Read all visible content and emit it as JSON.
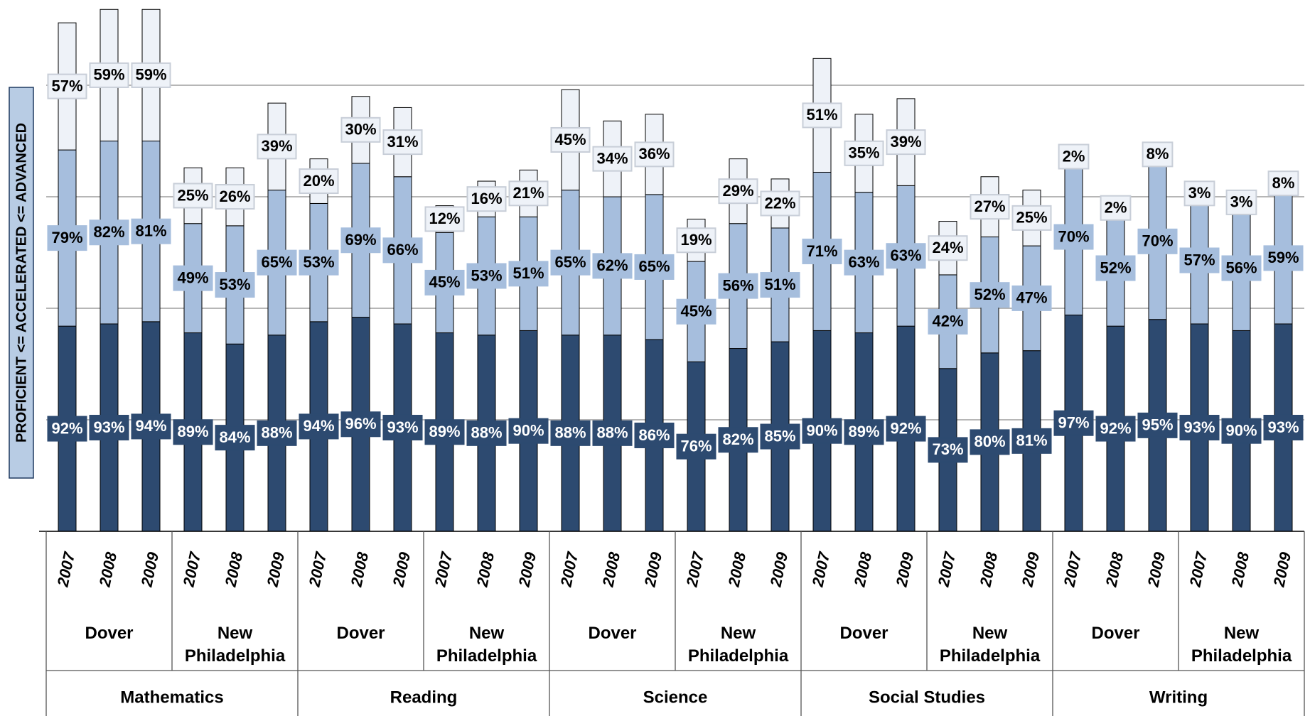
{
  "chart_data": {
    "type": "stacked-bar",
    "y_axis_label": "PROFICIENT <= ACCELERATED <= ADVANCED",
    "categories": [
      "2007",
      "2008",
      "2009",
      "2007",
      "2008",
      "2009",
      "2007",
      "2008",
      "2009",
      "2007",
      "2008",
      "2009",
      "2007",
      "2008",
      "2009",
      "2007",
      "2008",
      "2009",
      "2007",
      "2008",
      "2009",
      "2007",
      "2008",
      "2009",
      "2007",
      "2008",
      "2009",
      "2007",
      "2008",
      "2009"
    ],
    "schools": [
      "Dover",
      "New Philadelphia",
      "Dover",
      "New Philadelphia",
      "Dover",
      "New Philadelphia",
      "Dover",
      "New Philadelphia",
      "Dover",
      "New Philadelphia"
    ],
    "subjects": [
      "Mathematics",
      "Reading",
      "Science",
      "Social Studies",
      "Writing"
    ],
    "series": [
      {
        "color": "#2d4a70",
        "label_color": "#ffffff",
        "values": [
          92,
          93,
          94,
          89,
          84,
          88,
          94,
          96,
          93,
          89,
          88,
          90,
          88,
          88,
          86,
          76,
          82,
          85,
          90,
          89,
          92,
          73,
          80,
          81,
          97,
          92,
          95,
          93,
          90,
          93
        ],
        "value_labels": [
          "92%",
          "93%",
          "94%",
          "89%",
          "84%",
          "88%",
          "94%",
          "96%",
          "93%",
          "89%",
          "88%",
          "90%",
          "88%",
          "88%",
          "86%",
          "76%",
          "82%",
          "85%",
          "90%",
          "89%",
          "92%",
          "73%",
          "80%",
          "81%",
          "97%",
          "92%",
          "95%",
          "93%",
          "90%",
          "93%"
        ]
      },
      {
        "color": "#a6bedd",
        "label_color": "#000000",
        "values": [
          79,
          82,
          81,
          49,
          53,
          65,
          53,
          69,
          66,
          45,
          53,
          51,
          65,
          62,
          65,
          45,
          56,
          51,
          71,
          63,
          63,
          42,
          52,
          47,
          70,
          52,
          70,
          57,
          56,
          59
        ],
        "value_labels": [
          "79%",
          "82%",
          "81%",
          "49%",
          "53%",
          "65%",
          "53%",
          "69%",
          "66%",
          "45%",
          "53%",
          "51%",
          "65%",
          "62%",
          "65%",
          "45%",
          "56%",
          "51%",
          "71%",
          "63%",
          "63%",
          "42%",
          "52%",
          "47%",
          "70%",
          "52%",
          "70%",
          "57%",
          "56%",
          "59%"
        ]
      },
      {
        "color": "#eef2f8",
        "label_color": "#000000",
        "values": [
          57,
          59,
          59,
          25,
          26,
          39,
          20,
          30,
          31,
          12,
          16,
          21,
          45,
          34,
          36,
          19,
          29,
          22,
          51,
          35,
          39,
          24,
          27,
          25,
          2,
          2,
          8,
          3,
          3,
          8
        ],
        "value_labels": [
          "57%",
          "59%",
          "59%",
          "25%",
          "26%",
          "39%",
          "20%",
          "30%",
          "31%",
          "12%",
          "16%",
          "21%",
          "45%",
          "34%",
          "36%",
          "19%",
          "29%",
          "22%",
          "51%",
          "35%",
          "39%",
          "24%",
          "27%",
          "25%",
          "2%",
          "2%",
          "8%",
          "3%",
          "3%",
          "8%"
        ]
      }
    ],
    "ylim": [
      0,
      236
    ],
    "yticks": [
      0,
      50,
      100,
      150,
      200
    ],
    "grid": true
  }
}
